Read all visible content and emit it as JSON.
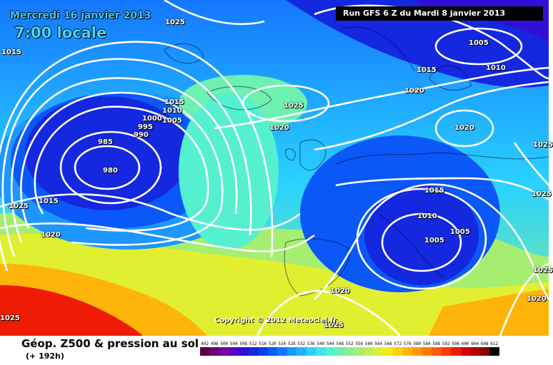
{
  "header": {
    "date_label": "Mercredi 16 janvier 2013",
    "time_label": "7:00 locale",
    "run_label": "Run GFS 6 Z du Mardi 8 janvier 2013"
  },
  "copyright": "Copyright © 2012 Meteociel.fr",
  "legend": {
    "title": "Géop. Z500 & pression au sol",
    "subtitle": "(+ 192h)",
    "scale_values": [
      "492",
      "496",
      "500",
      "504",
      "508",
      "512",
      "516",
      "520",
      "524",
      "528",
      "532",
      "536",
      "540",
      "544",
      "548",
      "552",
      "556",
      "560",
      "564",
      "568",
      "572",
      "576",
      "580",
      "584",
      "588",
      "592",
      "596",
      "600",
      "604",
      "608",
      "612"
    ],
    "scale_colors": [
      "#5a0040",
      "#6e0070",
      "#7a00a8",
      "#5a00c8",
      "#3010d8",
      "#1428e0",
      "#0a3cf0",
      "#0a58f8",
      "#1477ff",
      "#1d96ff",
      "#22b4ff",
      "#2ad2ff",
      "#3ce6ee",
      "#54f0d0",
      "#6ef0b0",
      "#88ee90",
      "#a6ee70",
      "#c4ef50",
      "#e0f030",
      "#f4e81c",
      "#ffd010",
      "#ffb40a",
      "#ff9806",
      "#ff7a04",
      "#ff5a04",
      "#ff3a04",
      "#ee1c04",
      "#d40404",
      "#b40000",
      "#8a0000",
      "#000000"
    ]
  },
  "map_colors": {
    "deep_low": "#1428e0",
    "low": "#1477ff",
    "mid": "#2ad2ff",
    "cyan": "#3ce6ee",
    "green": "#88ee90",
    "yellow": "#e0f030",
    "orange": "#ffb40a",
    "red": "#ee1c04"
  },
  "isobar_labels": [
    {
      "id": "l1025a",
      "text": "1025"
    },
    {
      "id": "l1015a",
      "text": "1015"
    },
    {
      "id": "l1005top",
      "text": "1005"
    },
    {
      "id": "l1010top",
      "text": "1010"
    },
    {
      "id": "l1015b",
      "text": "1015"
    },
    {
      "id": "l1020a",
      "text": "1020"
    },
    {
      "id": "l1015c",
      "text": "1015"
    },
    {
      "id": "l1010c",
      "text": "1010"
    },
    {
      "id": "l1000",
      "text": "1000"
    },
    {
      "id": "l995",
      "text": "995"
    },
    {
      "id": "l990",
      "text": "990"
    },
    {
      "id": "l1005c",
      "text": "1005"
    },
    {
      "id": "l1025b",
      "text": "1025"
    },
    {
      "id": "l1020b",
      "text": "1020"
    },
    {
      "id": "l1020c",
      "text": "1020"
    },
    {
      "id": "l985",
      "text": "985"
    },
    {
      "id": "l980",
      "text": "980"
    },
    {
      "id": "l1025c",
      "text": "1025"
    },
    {
      "id": "l1015d",
      "text": "1015"
    },
    {
      "id": "l1020d",
      "text": "1020"
    },
    {
      "id": "l1015e",
      "text": "1015"
    },
    {
      "id": "l1010e",
      "text": "1010"
    },
    {
      "id": "l1005e",
      "text": "1005"
    },
    {
      "id": "l1005f",
      "text": "1005"
    },
    {
      "id": "l1025d",
      "text": "1025"
    },
    {
      "id": "l1025e",
      "text": "1025"
    },
    {
      "id": "l1020e",
      "text": "1020"
    },
    {
      "id": "l1020f",
      "text": "1020"
    },
    {
      "id": "l1025f",
      "text": "1025"
    },
    {
      "id": "l1025g",
      "text": "1025"
    },
    {
      "id": "l1025h",
      "text": "1025"
    }
  ]
}
